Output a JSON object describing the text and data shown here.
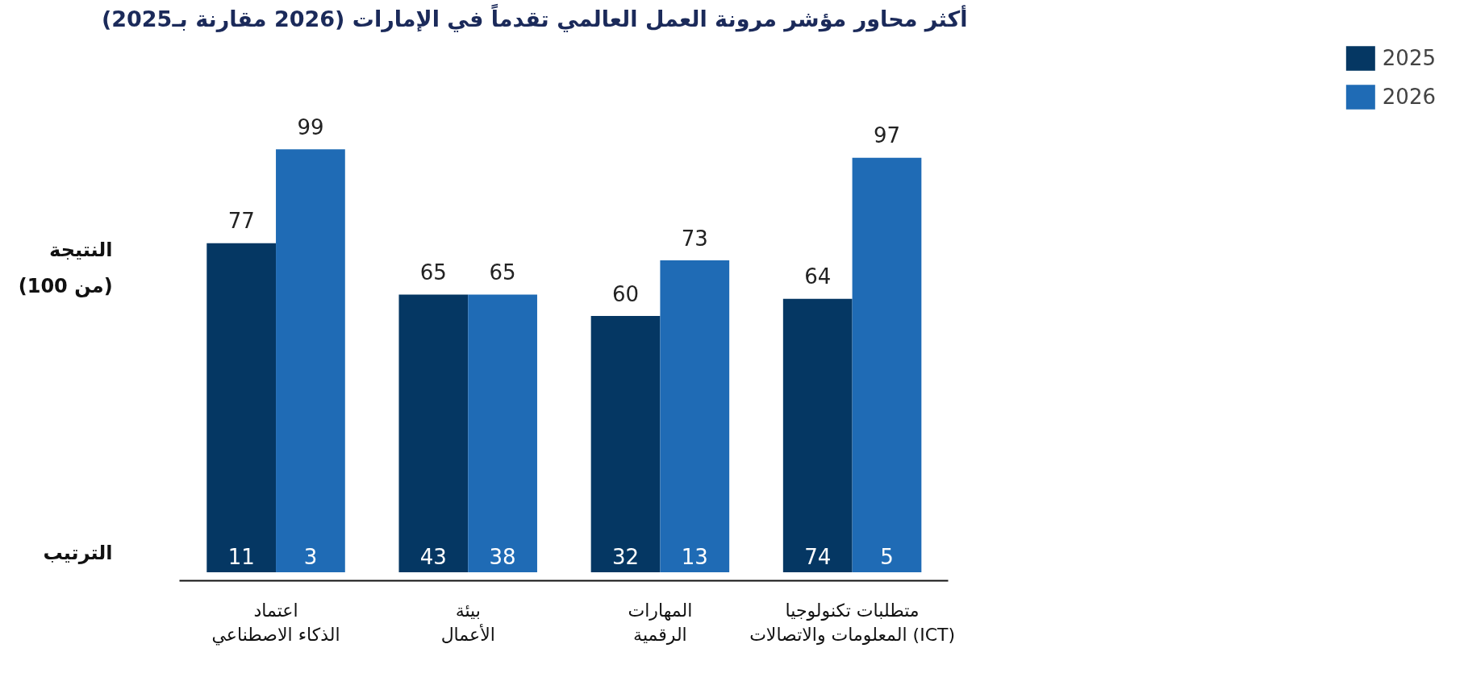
{
  "chart_data": {
    "type": "bar",
    "title": "أكثر محاور مؤشر مرونة العمل العالمي تقدماً في الإمارات (2026 مقارنة بـ2025)",
    "ylabel": "النتيجة\n(من 100)",
    "categories": [
      "اعتماد\nالذكاء الاصطناعي",
      "بيئة\nالأعمال",
      "المهارات\nالرقمية",
      "متطلبات تكنولوجيا\nالمعلومات والاتصالات (ICT)"
    ],
    "series": [
      {
        "name": "2025",
        "color": "#053763",
        "values": [
          77,
          65,
          60,
          64
        ]
      },
      {
        "name": "2026",
        "color": "#1f6bb5",
        "values": [
          99,
          65,
          73,
          97
        ]
      }
    ],
    "annotations": [
      "الترتيب",
      "11",
      "43",
      "32",
      "74",
      "3",
      "38",
      "13",
      "5"
    ],
    "data_labels": true,
    "legend": "right",
    "grid": false
  }
}
